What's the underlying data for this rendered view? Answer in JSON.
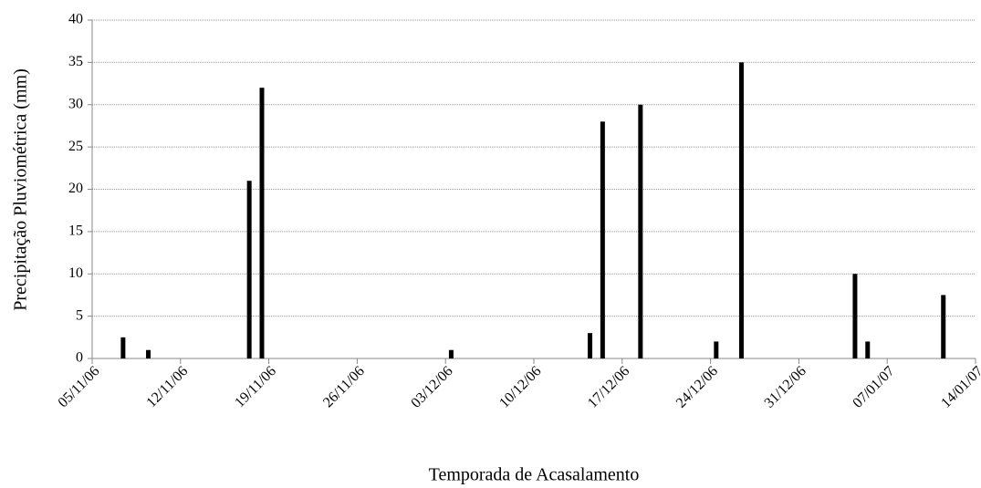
{
  "chart_data": {
    "type": "bar",
    "xlabel": "Temporada de Acasalamento",
    "ylabel": "Precipitação Pluviométrica (mm)",
    "x": [
      "07/11/06",
      "09/11/06",
      "17/11/06",
      "18/11/06",
      "03/12/06",
      "14/12/06",
      "15/12/06",
      "18/12/06",
      "24/12/06",
      "26/12/06",
      "04/01/07",
      "05/01/07",
      "11/01/07"
    ],
    "values": [
      2.5,
      1,
      21,
      32,
      1,
      3,
      28,
      30,
      2,
      35,
      10,
      2,
      7.5
    ],
    "color": "#000000",
    "xlim": [
      "05/11/06",
      "14/01/07"
    ],
    "xticks": [
      "05/11/06",
      "12/11/06",
      "19/11/06",
      "26/11/06",
      "03/12/06",
      "10/12/06",
      "17/12/06",
      "24/12/06",
      "31/12/06",
      "07/01/07",
      "14/01/07"
    ],
    "ylim": [
      0,
      40
    ],
    "yticks": [
      0,
      5,
      10,
      15,
      20,
      25,
      30,
      35,
      40
    ],
    "grid": true
  }
}
